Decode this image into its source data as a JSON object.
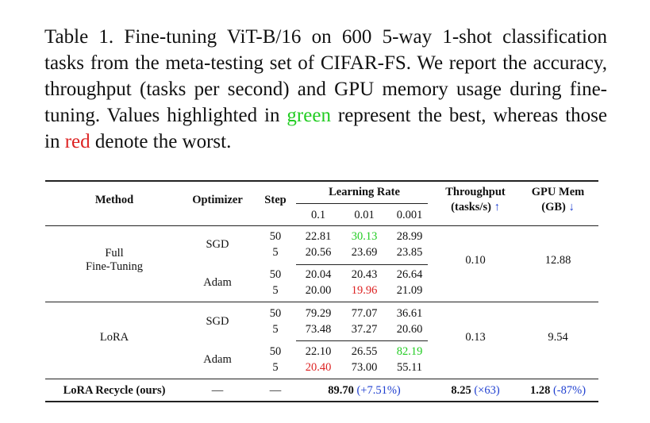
{
  "caption": {
    "part1": "Table 1.  Fine-tuning ViT-B/16 on 600 5-way 1-shot classification tasks from the meta-testing set of CIFAR-FS. We report the accuracy, throughput (tasks per second) and GPU memory usage during fine-tuning. Values highlighted in ",
    "green_word": "green",
    "part2": " represent the best, whereas those in ",
    "red_word": "red",
    "part3": " denote the worst."
  },
  "table": {
    "headers": {
      "method": "Method",
      "optimizer": "Optimizer",
      "step": "Step",
      "learning_rate": "Learning Rate",
      "lr_values": [
        "0.1",
        "0.01",
        "0.001"
      ],
      "throughput_line1": "Throughput",
      "throughput_line2": "(tasks/s)",
      "throughput_arrow": "↑",
      "gpu_line1": "GPU Mem",
      "gpu_line2": "(GB)",
      "gpu_arrow": "↓"
    },
    "full_ft": {
      "method_line1": "Full",
      "method_line2": "Fine-Tuning",
      "sgd_label": "SGD",
      "adam_label": "Adam",
      "rows": [
        {
          "step": "50",
          "v1": "22.81",
          "v2": "30.13",
          "v3": "28.99"
        },
        {
          "step": "5",
          "v1": "20.56",
          "v2": "23.69",
          "v3": "23.85"
        },
        {
          "step": "50",
          "v1": "20.04",
          "v2": "20.43",
          "v3": "26.64"
        },
        {
          "step": "5",
          "v1": "20.00",
          "v2": "19.96",
          "v3": "21.09"
        }
      ],
      "throughput": "0.10",
      "gpu_mem": "12.88"
    },
    "lora": {
      "method": "LoRA",
      "sgd_label": "SGD",
      "adam_label": "Adam",
      "rows": [
        {
          "step": "50",
          "v1": "79.29",
          "v2": "77.07",
          "v3": "36.61"
        },
        {
          "step": "5",
          "v1": "73.48",
          "v2": "37.27",
          "v3": "20.60"
        },
        {
          "step": "50",
          "v1": "22.10",
          "v2": "26.55",
          "v3": "82.19"
        },
        {
          "step": "5",
          "v1": "20.40",
          "v2": "73.00",
          "v3": "55.11"
        }
      ],
      "throughput": "0.13",
      "gpu_mem": "9.54"
    },
    "recycle": {
      "method": "LoRA Recycle (ours)",
      "optimizer": "—",
      "step": "—",
      "accuracy": "89.70",
      "accuracy_delta": "(+7.51%)",
      "throughput": "8.25",
      "throughput_delta": "(×63)",
      "gpu_mem": "1.28",
      "gpu_delta": "(-87%)"
    }
  },
  "colors": {
    "best": "#22cc22",
    "worst": "#dd2222",
    "improvement": "#1f3fd0"
  }
}
